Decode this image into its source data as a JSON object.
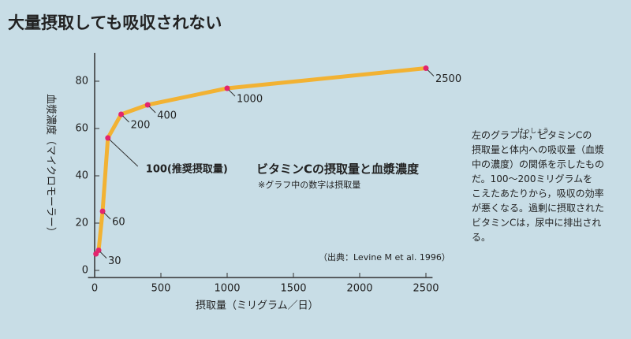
{
  "chart_data": {
    "type": "line",
    "title": "大量摂取しても吸収されない",
    "chart_title": "ビタミンCの摂取量と血漿濃度",
    "chart_subtitle": "※グラフ中の数字は摂取量",
    "source": "（出典：Levine M et al. 1996）",
    "ylabel": "血漿濃度（マイクロモーラー）",
    "xlabel": "摂取量（ミリグラム／日）",
    "x": [
      10,
      30,
      60,
      100,
      200,
      400,
      1000,
      2500
    ],
    "series": [
      {
        "name": "血漿濃度",
        "color": "#f2b233",
        "marker_color": "#e3246e",
        "values": [
          7,
          8.5,
          25,
          56,
          66,
          70,
          77,
          85.5
        ]
      }
    ],
    "point_labels": [
      null,
      "30",
      "60",
      "100(推奨摂取量)",
      "200",
      "400",
      "1000",
      "2500"
    ],
    "xlim": [
      -50,
      2550
    ],
    "xticks": [
      0,
      500,
      1000,
      1500,
      2000,
      2500
    ],
    "ylim": [
      -3,
      92
    ],
    "yticks": [
      0,
      20,
      40,
      60,
      80
    ],
    "note": {
      "ruby": "けっしょう",
      "lines": [
        "左のグラフは，ビタミンCの",
        "摂取量と体内への吸収量（血漿",
        "中の濃度）の関係を示したもの",
        "だ。100〜200ミリグラムを",
        "こえたあたりから，吸収の効率",
        "が悪くなる。過剰に摂取された",
        "ビタミンCは，尿中に排出され",
        "る。"
      ]
    }
  }
}
